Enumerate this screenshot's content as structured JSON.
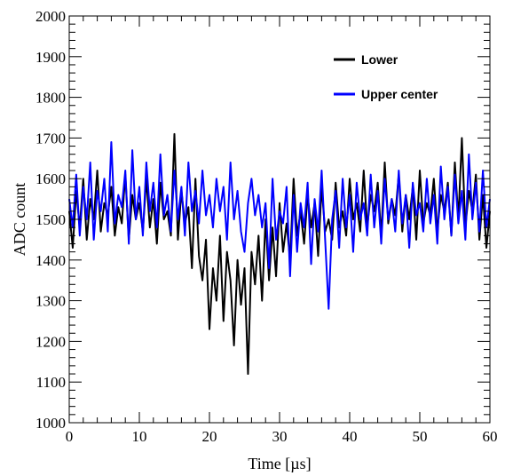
{
  "chart_data": {
    "type": "line",
    "title": "",
    "xlabel": "Time [µs]",
    "ylabel": "ADC count",
    "xlim": [
      0,
      60
    ],
    "ylim": [
      1000,
      2000
    ],
    "xticks": [
      0,
      10,
      20,
      30,
      40,
      50,
      60
    ],
    "yticks": [
      1000,
      1100,
      1200,
      1300,
      1400,
      1500,
      1600,
      1700,
      1800,
      1900,
      2000
    ],
    "xtick_labels": [
      "0",
      "10",
      "20",
      "30",
      "40",
      "50",
      "60"
    ],
    "ytick_labels": [
      "1000",
      "1100",
      "1200",
      "1300",
      "1400",
      "1500",
      "1600",
      "1700",
      "1800",
      "1900",
      "2000"
    ],
    "grid": false,
    "legend_position": "top-right",
    "x": [
      0,
      0.5,
      1,
      1.5,
      2,
      2.5,
      3,
      3.5,
      4,
      4.5,
      5,
      5.5,
      6,
      6.5,
      7,
      7.5,
      8,
      8.5,
      9,
      9.5,
      10,
      10.5,
      11,
      11.5,
      12,
      12.5,
      13,
      13.5,
      14,
      14.5,
      15,
      15.5,
      16,
      16.5,
      17,
      17.5,
      18,
      18.5,
      19,
      19.5,
      20,
      20.5,
      21,
      21.5,
      22,
      22.5,
      23,
      23.5,
      24,
      24.5,
      25,
      25.5,
      26,
      26.5,
      27,
      27.5,
      28,
      28.5,
      29,
      29.5,
      30,
      30.5,
      31,
      31.5,
      32,
      32.5,
      33,
      33.5,
      34,
      34.5,
      35,
      35.5,
      36,
      36.5,
      37,
      37.5,
      38,
      38.5,
      39,
      39.5,
      40,
      40.5,
      41,
      41.5,
      42,
      42.5,
      43,
      43.5,
      44,
      44.5,
      45,
      45.5,
      46,
      46.5,
      47,
      47.5,
      48,
      48.5,
      49,
      49.5,
      50,
      50.5,
      51,
      51.5,
      52,
      52.5,
      53,
      53.5,
      54,
      54.5,
      55,
      55.5,
      56,
      56.5,
      57,
      57.5,
      58,
      58.5,
      59,
      59.5,
      60
    ],
    "series": [
      {
        "name": "Lower",
        "color": "#000000",
        "values": [
          1520,
          1430,
          1570,
          1480,
          1600,
          1450,
          1550,
          1500,
          1620,
          1470,
          1540,
          1510,
          1580,
          1460,
          1530,
          1490,
          1610,
          1450,
          1560,
          1500,
          1540,
          1470,
          1600,
          1480,
          1550,
          1440,
          1590,
          1500,
          1520,
          1460,
          1710,
          1450,
          1570,
          1490,
          1530,
          1380,
          1600,
          1410,
          1350,
          1450,
          1230,
          1380,
          1300,
          1460,
          1250,
          1420,
          1350,
          1190,
          1400,
          1290,
          1380,
          1120,
          1420,
          1340,
          1460,
          1300,
          1500,
          1350,
          1480,
          1360,
          1540,
          1420,
          1490,
          1400,
          1600,
          1460,
          1520,
          1440,
          1560,
          1480,
          1540,
          1410,
          1580,
          1470,
          1500,
          1450,
          1590,
          1480,
          1520,
          1460,
          1600,
          1500,
          1540,
          1470,
          1620,
          1480,
          1560,
          1520,
          1590,
          1460,
          1640,
          1490,
          1550,
          1510,
          1610,
          1470,
          1560,
          1500,
          1580,
          1450,
          1620,
          1490,
          1540,
          1510,
          1600,
          1470,
          1560,
          1520,
          1590,
          1460,
          1640,
          1500,
          1700,
          1480,
          1570,
          1520,
          1610,
          1450,
          1560,
          1430,
          1520
        ]
      },
      {
        "name": "Upper center",
        "color": "#0000ff",
        "values": [
          1550,
          1480,
          1610,
          1460,
          1580,
          1500,
          1640,
          1450,
          1570,
          1520,
          1600,
          1470,
          1690,
          1490,
          1560,
          1530,
          1620,
          1440,
          1670,
          1500,
          1580,
          1460,
          1640,
          1520,
          1590,
          1480,
          1660,
          1510,
          1560,
          1470,
          1620,
          1500,
          1580,
          1460,
          1640,
          1520,
          1570,
          1490,
          1620,
          1510,
          1560,
          1480,
          1600,
          1520,
          1580,
          1450,
          1640,
          1500,
          1570,
          1470,
          1420,
          1540,
          1600,
          1510,
          1560,
          1480,
          1540,
          1380,
          1600,
          1450,
          1520,
          1490,
          1580,
          1360,
          1560,
          1420,
          1540,
          1480,
          1590,
          1390,
          1550,
          1470,
          1620,
          1450,
          1280,
          1500,
          1570,
          1430,
          1600,
          1480,
          1560,
          1420,
          1590,
          1500,
          1540,
          1460,
          1610,
          1480,
          1570,
          1440,
          1600,
          1500,
          1550,
          1470,
          1620,
          1490,
          1560,
          1430,
          1590,
          1510,
          1540,
          1470,
          1600,
          1490,
          1560,
          1440,
          1630,
          1500,
          1580,
          1460,
          1610,
          1490,
          1570,
          1450,
          1660,
          1500,
          1590,
          1470,
          1620,
          1480,
          1550
        ]
      }
    ]
  }
}
